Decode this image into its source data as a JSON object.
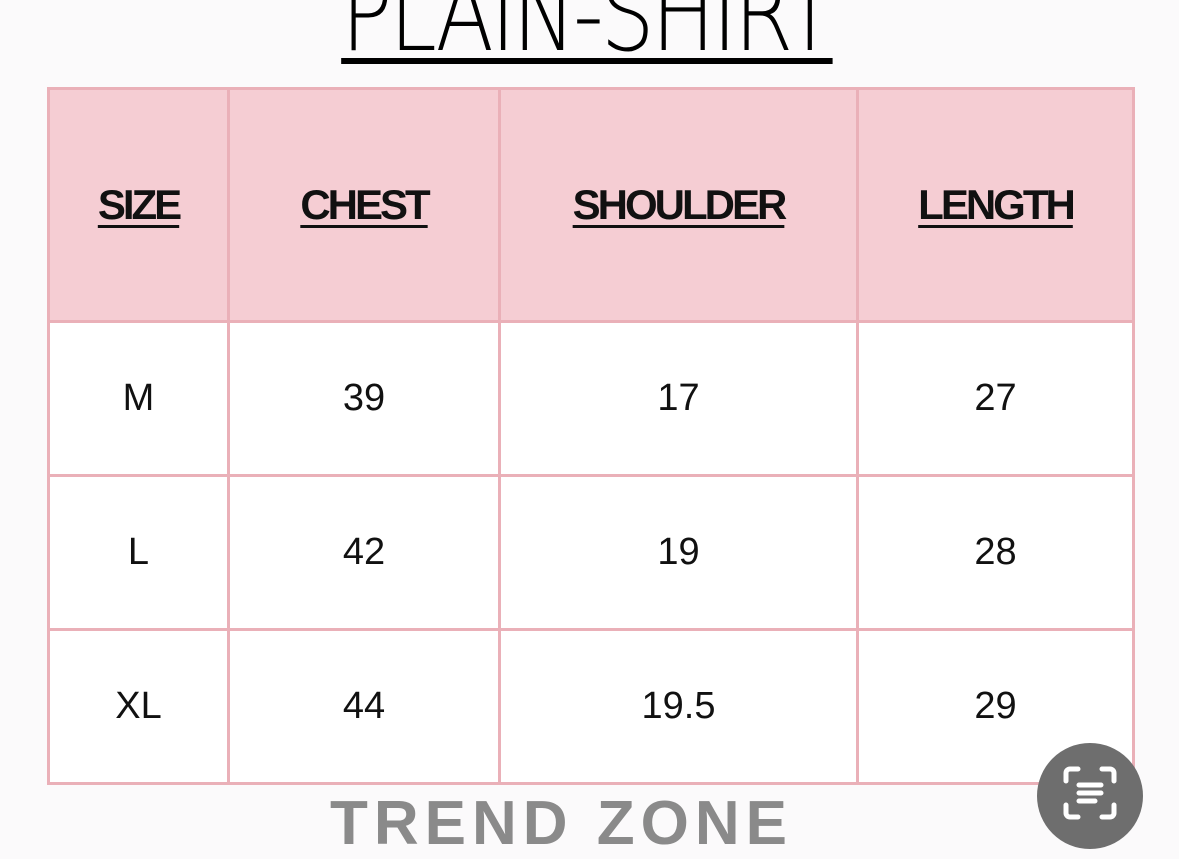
{
  "title": "PLAIN-SHIRT",
  "table": {
    "headers": [
      "SIZE",
      "CHEST",
      "SHOULDER",
      "LENGTH"
    ],
    "rows": [
      [
        "M",
        "39",
        "17",
        "27"
      ],
      [
        "L",
        "42",
        "19",
        "28"
      ],
      [
        "XL",
        "44",
        "19.5",
        "29"
      ]
    ]
  },
  "brand": "TREND ZONE",
  "lens_button": {
    "icon": "scan-text-icon"
  },
  "colors": {
    "header_bg": "#f5cdd3",
    "border": "#eab0b8"
  }
}
